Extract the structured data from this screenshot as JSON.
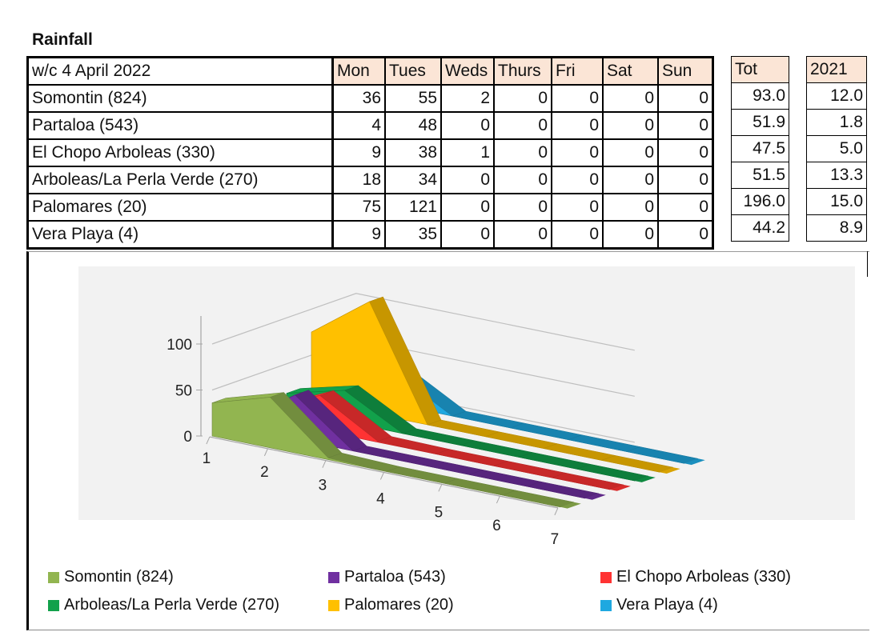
{
  "title": "Rainfall",
  "table": {
    "header_label": "w/c 4 April 2022",
    "days": [
      "Mon",
      "Tues",
      "Weds",
      "Thurs",
      "Fri",
      "Sat",
      "Sun"
    ],
    "tot_header": "Tot",
    "year_header": "2021",
    "rows": [
      {
        "station": "Somontin (824)",
        "values": [
          "36",
          "55",
          "2",
          "0",
          "0",
          "0",
          "0"
        ],
        "tot": "93.0",
        "y2021": "12.0"
      },
      {
        "station": "Partaloa (543)",
        "values": [
          "4",
          "48",
          "0",
          "0",
          "0",
          "0",
          "0"
        ],
        "tot": "51.9",
        "y2021": "1.8"
      },
      {
        "station": "El Chopo Arboleas (330)",
        "values": [
          "9",
          "38",
          "1",
          "0",
          "0",
          "0",
          "0"
        ],
        "tot": "47.5",
        "y2021": "5.0"
      },
      {
        "station": "Arboleas/La Perla Verde (270)",
        "values": [
          "18",
          "34",
          "0",
          "0",
          "0",
          "0",
          "0"
        ],
        "tot": "51.5",
        "y2021": "13.3"
      },
      {
        "station": "Palomares (20)",
        "values": [
          "75",
          "121",
          "0",
          "0",
          "0",
          "0",
          "0"
        ],
        "tot": "196.0",
        "y2021": "15.0"
      },
      {
        "station": "Vera Playa (4)",
        "values": [
          "9",
          "35",
          "0",
          "0",
          "0",
          "0",
          "0"
        ],
        "tot": "44.2",
        "y2021": "8.9"
      }
    ]
  },
  "chart_data": {
    "type": "area",
    "subtype": "3d-area",
    "categories": [
      "1",
      "2",
      "3",
      "4",
      "5",
      "6",
      "7"
    ],
    "y_ticks": [
      "0",
      "50",
      "100"
    ],
    "ylim": [
      0,
      130
    ],
    "legend_position": "bottom",
    "series": [
      {
        "name": "Somontin (824)",
        "values": [
          36,
          55,
          2,
          0,
          0,
          0,
          0
        ],
        "color": "#92b550"
      },
      {
        "name": "Partaloa (543)",
        "values": [
          4,
          48,
          0,
          0,
          0,
          0,
          0
        ],
        "color": "#7030a0"
      },
      {
        "name": "El Chopo Arboleas (330)",
        "values": [
          9,
          38,
          1,
          0,
          0,
          0,
          0
        ],
        "color": "#ff3333"
      },
      {
        "name": "Arboleas/La Perla Verde (270)",
        "values": [
          18,
          34,
          0,
          0,
          0,
          0,
          0
        ],
        "color": "#12a14b"
      },
      {
        "name": "Palomares (20)",
        "values": [
          75,
          121,
          0,
          0,
          0,
          0,
          0
        ],
        "color": "#ffc000"
      },
      {
        "name": "Vera Playa (4)",
        "values": [
          9,
          35,
          0,
          0,
          0,
          0,
          0
        ],
        "color": "#1fa8e0"
      }
    ]
  }
}
